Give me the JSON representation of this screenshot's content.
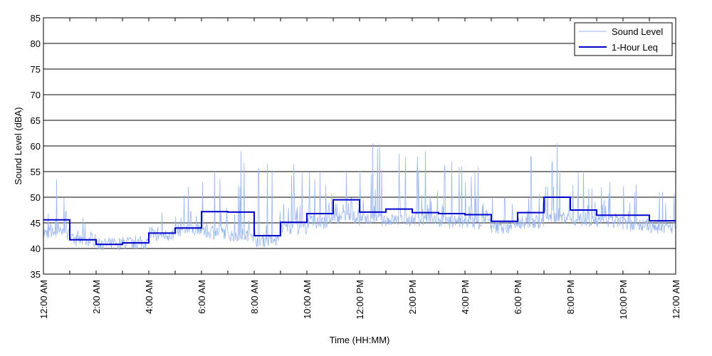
{
  "chart_data": {
    "type": "line",
    "title": "",
    "xlabel": "Time (HH:MM)",
    "ylabel": "Sound Level (dBA)",
    "ylim": [
      35,
      85
    ],
    "yticks": [
      35,
      40,
      45,
      50,
      55,
      60,
      65,
      70,
      75,
      80,
      85
    ],
    "xlim_hours": [
      0,
      24
    ],
    "x_tick_labels": [
      {
        "hour": 0,
        "label": "12:00 AM"
      },
      {
        "hour": 2,
        "label": "2:00 AM"
      },
      {
        "hour": 4,
        "label": "4:00 AM"
      },
      {
        "hour": 6,
        "label": "6:00 AM"
      },
      {
        "hour": 8,
        "label": "8:00 AM"
      },
      {
        "hour": 10,
        "label": "10:00 AM"
      },
      {
        "hour": 12,
        "label": "12:00 PM"
      },
      {
        "hour": 14,
        "label": "2:00 PM"
      },
      {
        "hour": 16,
        "label": "4:00 PM"
      },
      {
        "hour": 18,
        "label": "6:00 PM"
      },
      {
        "hour": 20,
        "label": "8:00 PM"
      },
      {
        "hour": 22,
        "label": "10:00 PM"
      },
      {
        "hour": 24,
        "label": "12:00 AM"
      }
    ],
    "grid": "horizontal",
    "legend_position": "top-right",
    "series": [
      {
        "name": "Sound Level",
        "color": "#9bb7ee",
        "style": "thin line",
        "hourly_typical": [
          43,
          41.5,
          40.8,
          41,
          42.5,
          43.5,
          43,
          42.5,
          41.5,
          44,
          45,
          46,
          45.5,
          45.5,
          45.5,
          45,
          45,
          44,
          45,
          46,
          45.5,
          45,
          44.5,
          44
        ],
        "hourly_peaks": [
          53.5,
          46,
          42,
          42.5,
          47,
          52,
          55,
          59,
          56.5,
          56.5,
          55,
          55,
          60.5,
          58.5,
          59,
          57,
          56,
          50,
          58,
          60.5,
          55,
          53,
          52.5,
          51
        ]
      },
      {
        "name": "1-Hour Leq",
        "color": "#0000cc",
        "style": "thick stepped line",
        "hourly_values": [
          45.6,
          41.7,
          40.8,
          41.1,
          43,
          44,
          47.2,
          47.1,
          42.5,
          45.1,
          46.8,
          49.5,
          47.1,
          47.7,
          47,
          46.8,
          46.6,
          45.3,
          47,
          50,
          47.5,
          46.5,
          46.5,
          45.4
        ]
      }
    ]
  }
}
